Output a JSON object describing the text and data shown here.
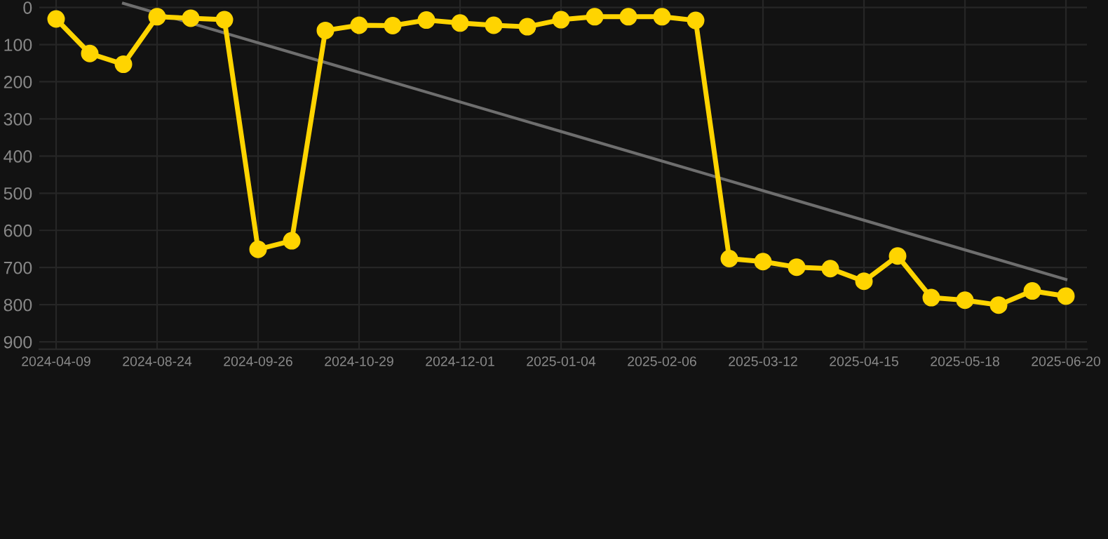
{
  "chart_data": {
    "type": "line",
    "categories": [
      "2024-04-09",
      null,
      null,
      "2024-08-24",
      null,
      null,
      "2024-09-26",
      null,
      null,
      "2024-10-29",
      null,
      null,
      "2024-12-01",
      null,
      null,
      "2025-01-04",
      null,
      null,
      "2025-02-06",
      null,
      null,
      "2025-03-12",
      null,
      null,
      "2025-04-15",
      null,
      null,
      "2025-05-18",
      null,
      null,
      "2025-06-20"
    ],
    "series": [
      {
        "color": "#ffd400",
        "marker": "circle",
        "values": [
          31,
          124,
          153,
          25,
          29,
          33,
          651,
          628,
          62,
          48,
          49,
          34,
          42,
          48,
          52,
          33,
          25,
          25,
          25,
          35,
          676,
          684,
          699,
          703,
          737,
          669,
          781,
          788,
          801,
          763,
          777
        ]
      },
      {
        "color": "#6e6e6e",
        "marker": "none",
        "values": [
          null,
          null,
          -11,
          null,
          null,
          null,
          null,
          null,
          null,
          null,
          null,
          null,
          null,
          null,
          null,
          null,
          null,
          null,
          null,
          null,
          null,
          null,
          null,
          null,
          null,
          null,
          null,
          null,
          null,
          null,
          732
        ]
      }
    ],
    "ylim": [
      920,
      -20
    ],
    "yticks": [
      0,
      100,
      200,
      300,
      400,
      500,
      600,
      700,
      800,
      900
    ],
    "grid": true
  }
}
